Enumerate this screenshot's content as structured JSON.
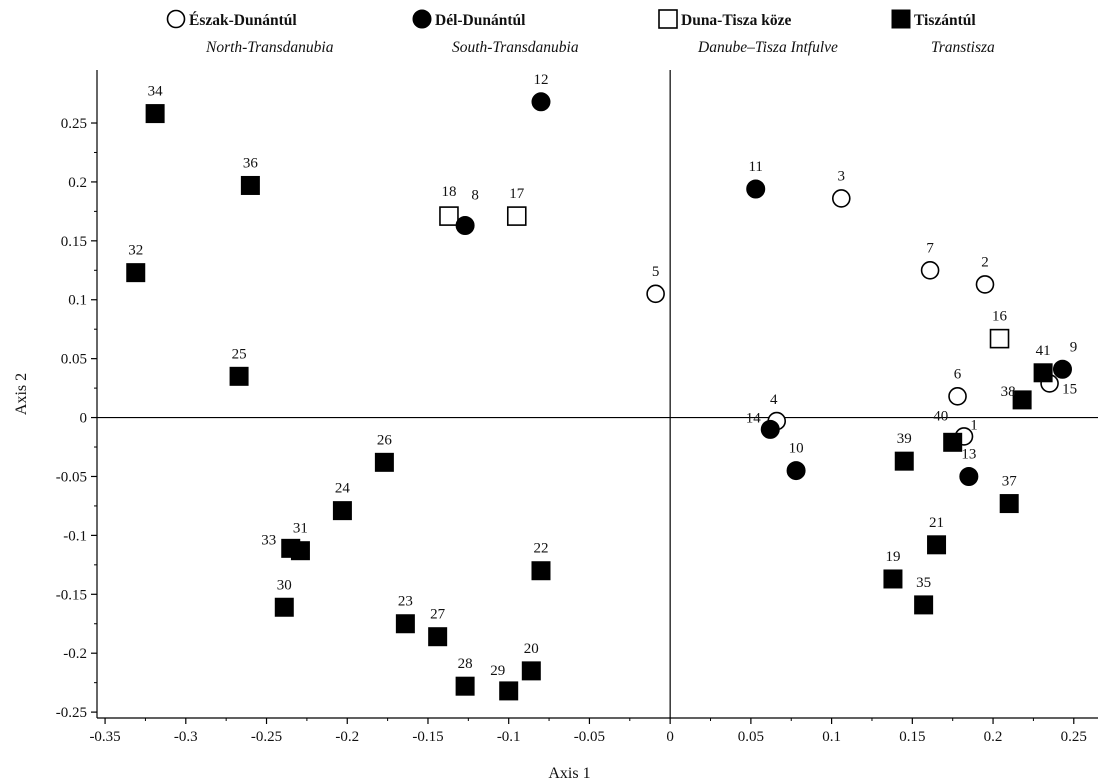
{
  "chart_data": {
    "type": "scatter",
    "xlabel": "Axis 1",
    "ylabel": "Axis 2",
    "xlim": [
      -0.355,
      0.265
    ],
    "ylim": [
      -0.255,
      0.295
    ],
    "xticks": [
      -0.35,
      -0.3,
      -0.25,
      -0.2,
      -0.15,
      -0.1,
      -0.05,
      0,
      0.05,
      0.1,
      0.15,
      0.2,
      0.25
    ],
    "xtick_labels": [
      "-0.35",
      "-0.3",
      "-0.25",
      "-0.2",
      "-0.15",
      "-0.1",
      "-0.05",
      "0",
      "0.05",
      "0.1",
      "0.15",
      "0.2",
      "0.25"
    ],
    "yticks": [
      -0.25,
      -0.2,
      -0.15,
      -0.1,
      -0.05,
      0,
      0.05,
      0.1,
      0.15,
      0.2,
      0.25
    ],
    "ytick_labels": [
      "-0.25",
      "-0.2",
      "-0.15",
      "-0.1",
      "-0.05",
      "0",
      "0.05",
      "0.1",
      "0.15",
      "0.2",
      "0.25"
    ],
    "grid": false,
    "legend_position": "top",
    "series": [
      {
        "name": "Észak-Dunántúl",
        "subtitle": "North-Transdanubia",
        "marker": "open-circle",
        "points": [
          {
            "label": "1",
            "x": 0.182,
            "y": -0.016
          },
          {
            "label": "2",
            "x": 0.195,
            "y": 0.113
          },
          {
            "label": "3",
            "x": 0.106,
            "y": 0.186
          },
          {
            "label": "4",
            "x": 0.066,
            "y": -0.003
          },
          {
            "label": "5",
            "x": -0.009,
            "y": 0.105
          },
          {
            "label": "6",
            "x": 0.178,
            "y": 0.018
          },
          {
            "label": "7",
            "x": 0.161,
            "y": 0.125
          },
          {
            "label": "15",
            "x": 0.235,
            "y": 0.029
          }
        ]
      },
      {
        "name": "Dél-Dunántúl",
        "subtitle": "South-Transdanubia",
        "marker": "filled-circle",
        "points": [
          {
            "label": "8",
            "x": -0.127,
            "y": 0.163
          },
          {
            "label": "9",
            "x": 0.243,
            "y": 0.041
          },
          {
            "label": "10",
            "x": 0.078,
            "y": -0.045
          },
          {
            "label": "11",
            "x": 0.053,
            "y": 0.194
          },
          {
            "label": "12",
            "x": -0.08,
            "y": 0.268
          },
          {
            "label": "13",
            "x": 0.185,
            "y": -0.05
          },
          {
            "label": "14",
            "x": 0.062,
            "y": -0.01
          }
        ]
      },
      {
        "name": "Duna-Tisza köze",
        "subtitle": "Danube–Tisza Intfulve",
        "marker": "open-square",
        "points": [
          {
            "label": "16",
            "x": 0.204,
            "y": 0.067
          },
          {
            "label": "17",
            "x": -0.095,
            "y": 0.171
          },
          {
            "label": "18",
            "x": -0.137,
            "y": 0.171
          }
        ]
      },
      {
        "name": "Tiszántúl",
        "subtitle": "Transtisza",
        "marker": "filled-square",
        "points": [
          {
            "label": "19",
            "x": 0.138,
            "y": -0.137
          },
          {
            "label": "20",
            "x": -0.086,
            "y": -0.215
          },
          {
            "label": "21",
            "x": 0.165,
            "y": -0.108
          },
          {
            "label": "22",
            "x": -0.08,
            "y": -0.13
          },
          {
            "label": "23",
            "x": -0.164,
            "y": -0.175
          },
          {
            "label": "24",
            "x": -0.203,
            "y": -0.079
          },
          {
            "label": "25",
            "x": -0.267,
            "y": 0.035
          },
          {
            "label": "26",
            "x": -0.177,
            "y": -0.038
          },
          {
            "label": "27",
            "x": -0.144,
            "y": -0.186
          },
          {
            "label": "28",
            "x": -0.127,
            "y": -0.228
          },
          {
            "label": "29",
            "x": -0.1,
            "y": -0.232
          },
          {
            "label": "30",
            "x": -0.239,
            "y": -0.161
          },
          {
            "label": "31",
            "x": -0.229,
            "y": -0.113
          },
          {
            "label": "32",
            "x": -0.331,
            "y": 0.123
          },
          {
            "label": "33",
            "x": -0.235,
            "y": -0.111
          },
          {
            "label": "34",
            "x": -0.319,
            "y": 0.258
          },
          {
            "label": "35",
            "x": 0.157,
            "y": -0.159
          },
          {
            "label": "36",
            "x": -0.26,
            "y": 0.197
          },
          {
            "label": "37",
            "x": 0.21,
            "y": -0.073
          },
          {
            "label": "38",
            "x": 0.218,
            "y": 0.015
          },
          {
            "label": "39",
            "x": 0.145,
            "y": -0.037
          },
          {
            "label": "40",
            "x": 0.175,
            "y": -0.021
          },
          {
            "label": "41",
            "x": 0.231,
            "y": 0.038
          }
        ]
      }
    ]
  }
}
